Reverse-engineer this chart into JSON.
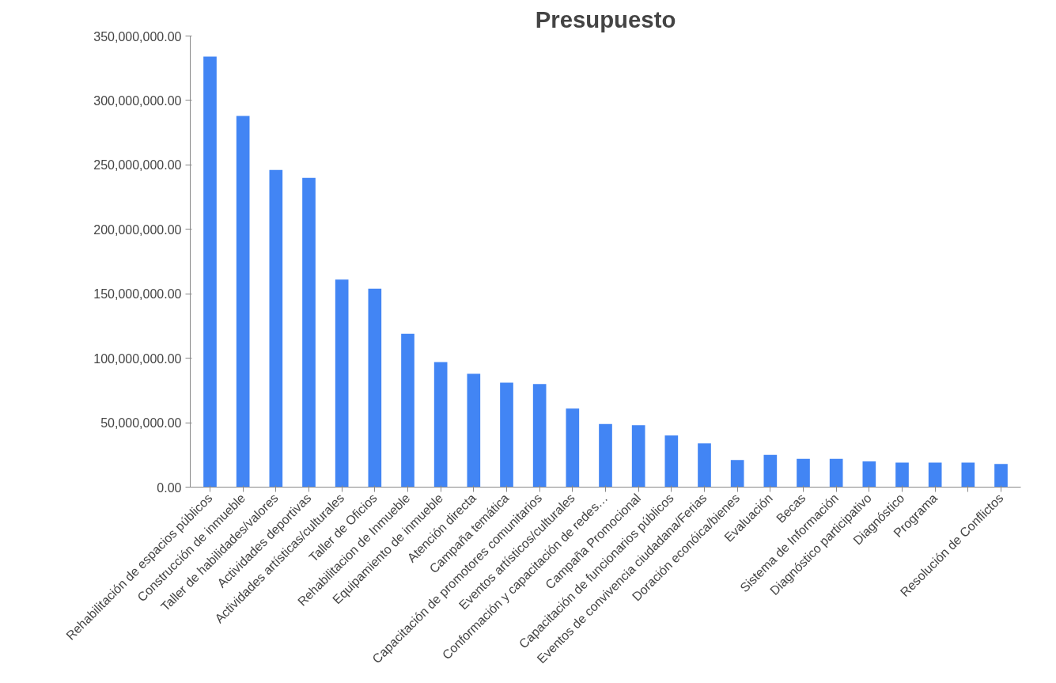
{
  "chart_data": {
    "type": "bar",
    "title": "Presupuesto",
    "categories": [
      "Rehabilitación de espacios públicos",
      "Construcción de inmueble",
      "Taller de habilidades/valores",
      "Actividades deportivas",
      "Actividades artísticas/culturales",
      "Taller de Oficios",
      "Rehabilitacion de Inmueble",
      "Equipamiento de inmueble",
      "Atención directa",
      "Campaña temática",
      "Capacitación de promotores comunitarios",
      "Eventos artísticos/culturales",
      "Conformación y capacitación de redes…",
      "Campaña Promocional",
      "Capacitación de funcionarios públicos",
      "Eventos de convivencia ciudadana/Ferias",
      "Doración econóica/bienes",
      "Evaluación",
      "Becas",
      "Sistema de Información",
      "Diagnóstico participativo",
      "Diagnóstico",
      "Programa",
      null,
      "Resolución de Conflictos"
    ],
    "values": [
      334000000,
      288000000,
      246000000,
      240000000,
      161000000,
      154000000,
      119000000,
      97000000,
      88000000,
      81000000,
      80000000,
      61000000,
      49000000,
      48000000,
      40000000,
      34000000,
      21000000,
      25000000,
      22000000,
      22000000,
      20000000,
      19000000,
      19000000,
      19000000,
      18000000
    ],
    "color": "#4285f4",
    "ylim": [
      0,
      350000000
    ],
    "yticks": [
      {
        "value": 0,
        "label": "0.00"
      },
      {
        "value": 50000000,
        "label": "50,000,000.00"
      },
      {
        "value": 100000000,
        "label": "100,000,000.00"
      },
      {
        "value": 150000000,
        "label": "150,000,000.00"
      },
      {
        "value": 200000000,
        "label": "200,000,000.00"
      },
      {
        "value": 250000000,
        "label": "250,000,000.00"
      },
      {
        "value": 300000000,
        "label": "300,000,000.00"
      },
      {
        "value": 350000000,
        "label": "350,000,000.00"
      }
    ],
    "grid": false
  }
}
